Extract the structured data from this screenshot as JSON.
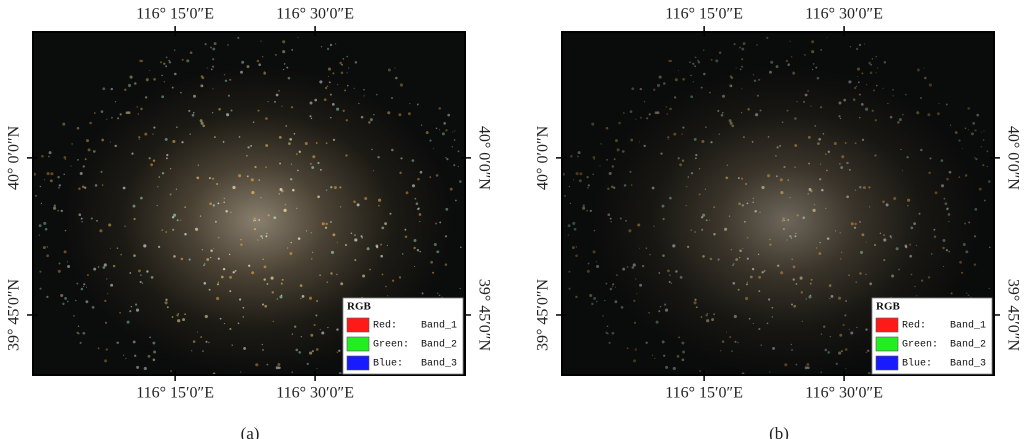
{
  "panels": [
    {
      "caption": "(a)",
      "top_labels": [
        "116° 15′0″E",
        "116° 30′0″E"
      ],
      "bottom_labels": [
        "116° 15′0″E",
        "116° 30′0″E"
      ],
      "left_labels": [
        "40° 0′0″N",
        "39° 45′0″N"
      ],
      "right_labels": [
        "40° 0′0″N",
        "39° 45′0″N"
      ],
      "legend": {
        "title": "RGB",
        "items": [
          {
            "label": "Red:",
            "band": "Band_1"
          },
          {
            "label": "Green:",
            "band": "Band_2"
          },
          {
            "label": "Blue:",
            "band": "Band_3"
          }
        ]
      }
    },
    {
      "caption": "(b)",
      "top_labels": [
        "116° 15′0″E",
        "116° 30′0″E"
      ],
      "bottom_labels": [
        "116° 15′0″E",
        "116° 30′0″E"
      ],
      "left_labels": [
        "40° 0′0″N",
        "39° 45′0″N"
      ],
      "right_labels": [
        "40° 0′0″N",
        "39° 45′0″N"
      ],
      "legend": {
        "title": "RGB",
        "items": [
          {
            "label": "Red:",
            "band": "Band_1"
          },
          {
            "label": "Green:",
            "band": "Band_2"
          },
          {
            "label": "Blue:",
            "band": "Band_3"
          }
        ]
      }
    }
  ]
}
